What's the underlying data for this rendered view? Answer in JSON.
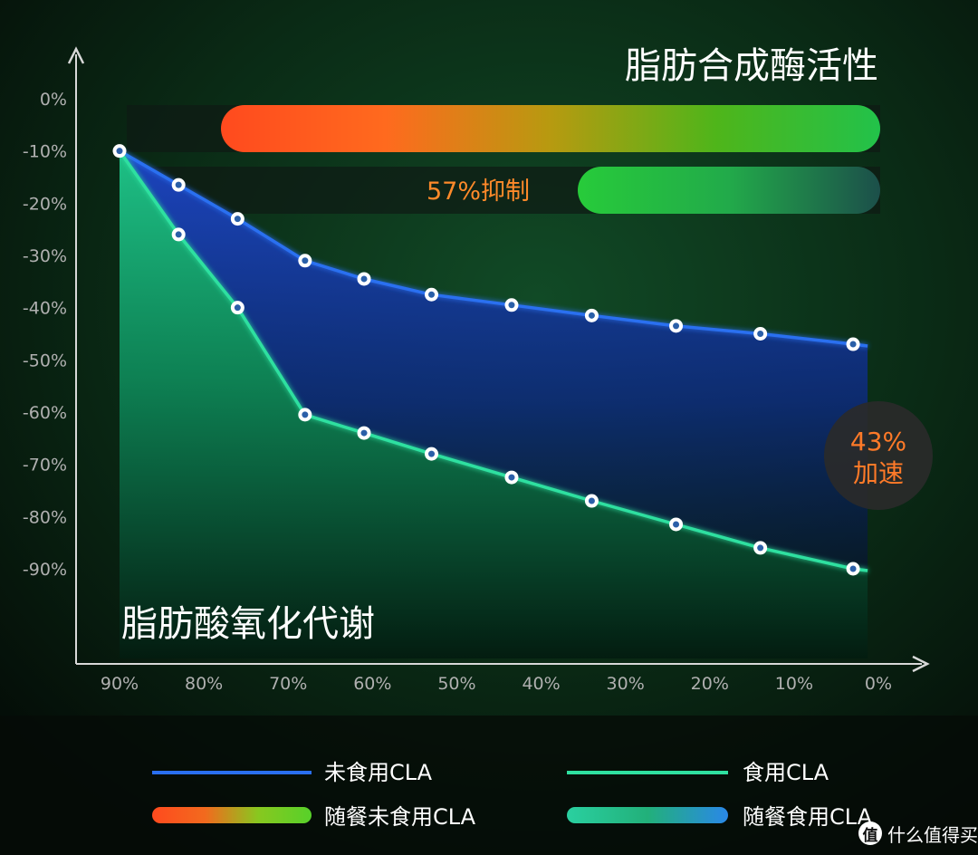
{
  "chart_data": {
    "type": "line",
    "title": "脂肪合成酶活性",
    "subtitle": "脂肪酸氧化代谢",
    "x": [
      "90%",
      "80%",
      "70%",
      "60%",
      "50%",
      "40%",
      "30%",
      "20%",
      "10%",
      "0%"
    ],
    "y_ticks": [
      "0%",
      "-10%",
      "-20%",
      "-30%",
      "-40%",
      "-50%",
      "-60%",
      "-70%",
      "-80%",
      "-90%"
    ],
    "ylim": [
      0,
      -90
    ],
    "series": [
      {
        "name": "未食用CLA",
        "color": "#2a6ff0",
        "points": [
          [
            90,
            -10
          ],
          [
            83,
            -16.5
          ],
          [
            76,
            -23
          ],
          [
            68,
            -31
          ],
          [
            61,
            -34.5
          ],
          [
            53,
            -37.5
          ],
          [
            43.5,
            -39.5
          ],
          [
            34,
            -41.5
          ],
          [
            24,
            -43.5
          ],
          [
            14,
            -45
          ],
          [
            3,
            -47
          ]
        ]
      },
      {
        "name": "食用CLA",
        "color": "#2fe0a0",
        "points": [
          [
            90,
            -10
          ],
          [
            83,
            -26
          ],
          [
            76,
            -40
          ],
          [
            68,
            -60.5
          ],
          [
            61,
            -64
          ],
          [
            53,
            -68
          ],
          [
            43.5,
            -72.5
          ],
          [
            34,
            -77
          ],
          [
            24,
            -81.5
          ],
          [
            14,
            -86
          ],
          [
            3,
            -90
          ]
        ]
      }
    ],
    "bars": [
      {
        "label": "",
        "value": "",
        "colors": [
          "#ff4a1e",
          "#ff6a1e",
          "#b79a10",
          "#4fb51a",
          "#22c24a"
        ]
      },
      {
        "label": "57%抑制",
        "value": "57%",
        "colors": [
          "#27cb3a",
          "#22aa4a",
          "#1c4f4a"
        ]
      }
    ],
    "badge": {
      "line1": "43%",
      "line2": "加速",
      "color": "#ff7a28"
    },
    "legend": [
      {
        "label": "未食用CLA",
        "style": "line",
        "color": "#2a6ff0"
      },
      {
        "label": "食用CLA",
        "style": "line",
        "color": "#2fe0a0"
      },
      {
        "label": "随餐未食用CLA",
        "style": "bar",
        "colors": [
          "#ff4a1e",
          "#f26a1e",
          "#88c81f",
          "#57d12a"
        ]
      },
      {
        "label": "随餐食用CLA",
        "style": "bar",
        "colors": [
          "#2ad0a0",
          "#22b07a",
          "#2a88e8"
        ]
      }
    ]
  },
  "watermark": {
    "badge": "值",
    "text": "什么值得买"
  }
}
